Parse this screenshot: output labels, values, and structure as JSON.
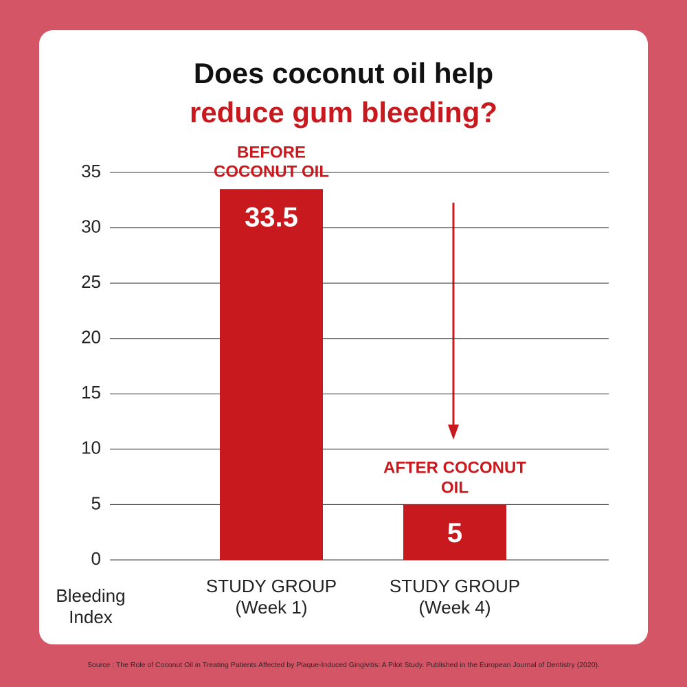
{
  "chart_data": {
    "type": "bar",
    "title": "Does coconut oil help",
    "subtitle": "reduce gum bleeding?",
    "y_label": "Bleeding Index",
    "categories": [
      "STUDY GROUP (Week 1)",
      "STUDY GROUP (Week 4)"
    ],
    "values": [
      33.5,
      5
    ],
    "annotations": [
      "BEFORE COCONUT OIL",
      "AFTER COCONUT OIL"
    ],
    "color": "#c8191e",
    "ylim": [
      0,
      35
    ],
    "yticks": [
      0,
      5,
      10,
      15,
      20,
      25,
      30,
      35
    ],
    "grid": true,
    "source": "Source : The Role of Coconut Oil in Treating Patients Affected by Plaque-Induced Gingivitis: A Pilot Study. Published in the European Journal of Dentistry (2020)."
  }
}
